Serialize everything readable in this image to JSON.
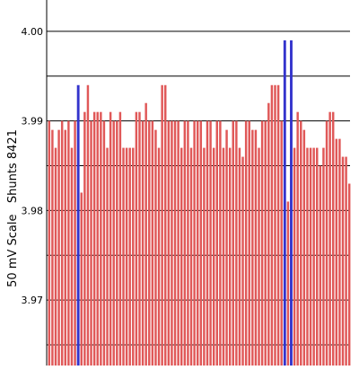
{
  "chart_data": {
    "type": "bar",
    "title": "",
    "xlabel": "",
    "ylabel": "50 mV Scale   Shunts 8421",
    "ylim": [
      3.9627,
      4.0035
    ],
    "ytick_values": [
      3.97,
      3.98,
      3.99,
      4.0
    ],
    "ytick_labels": [
      "3.97",
      "3.98",
      "3.99",
      "4.00"
    ],
    "minor_gridlines": [
      3.965,
      3.975,
      3.985,
      3.995
    ],
    "bar_color": "#e05858",
    "highlight_color": "#3333cc",
    "values": [
      3.99,
      3.989,
      3.987,
      3.989,
      3.99,
      3.989,
      3.99,
      3.987,
      3.99,
      3.994,
      3.982,
      3.991,
      3.994,
      3.99,
      3.991,
      3.991,
      3.991,
      3.99,
      3.987,
      3.991,
      3.99,
      3.99,
      3.991,
      3.987,
      3.987,
      3.987,
      3.987,
      3.991,
      3.991,
      3.99,
      3.992,
      3.99,
      3.99,
      3.989,
      3.987,
      3.994,
      3.994,
      3.99,
      3.99,
      3.99,
      3.99,
      3.987,
      3.99,
      3.99,
      3.987,
      3.99,
      3.99,
      3.99,
      3.987,
      3.99,
      3.99,
      3.987,
      3.99,
      3.99,
      3.987,
      3.989,
      3.987,
      3.99,
      3.99,
      3.987,
      3.986,
      3.99,
      3.99,
      3.989,
      3.989,
      3.987,
      3.99,
      3.99,
      3.992,
      3.994,
      3.994,
      3.994,
      3.99,
      3.999,
      3.981,
      3.999,
      3.987,
      3.991,
      3.99,
      3.989,
      3.987,
      3.987,
      3.987,
      3.987,
      3.985,
      3.987,
      3.99,
      3.991,
      3.991,
      3.988,
      3.988,
      3.986,
      3.986,
      3.983
    ],
    "highlight_indices": [
      9,
      73,
      75
    ],
    "grid": true
  }
}
